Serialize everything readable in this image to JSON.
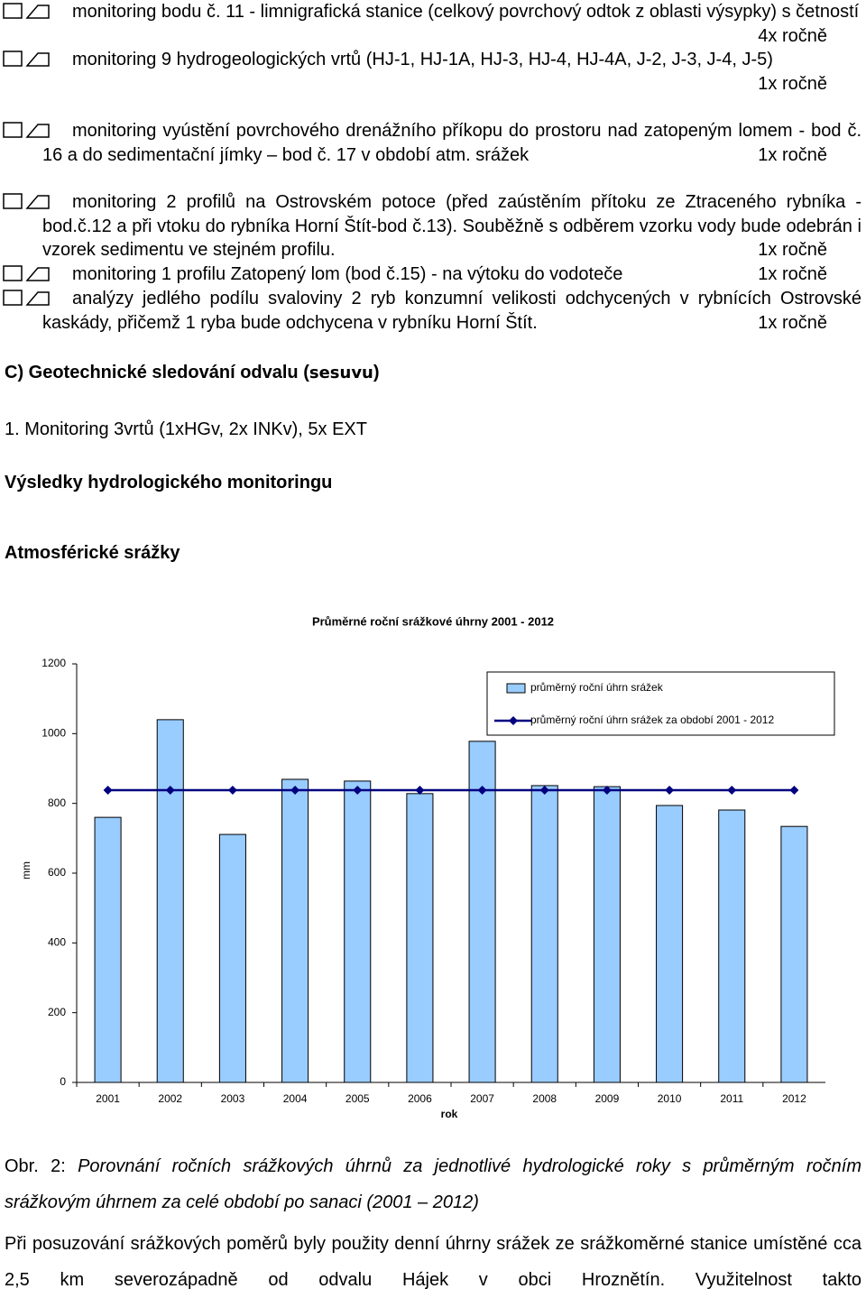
{
  "items": [
    {
      "text": "monitoring bodu č. 11 - limnigrafická stanice (celkový povrchový odtok z oblasti výsypky) s četností",
      "frequency": "4x ročně"
    },
    {
      "text": "monitoring 9 hydrogeologických vrtů (HJ-1, HJ-1A, HJ-3, HJ-4, HJ-4A, J-2, J-3, J-4, J-5)",
      "frequency": "1x ročně"
    },
    {
      "text": "monitoring vyústění povrchového drenážního příkopu do prostoru nad zatopeným lomem - bod č. 16 a do sedimentační jímky – bod č. 17 v období atm. srážek",
      "frequency": "1x ročně"
    },
    {
      "text": "monitoring 2 profilů na Ostrovském potoce (před zaústěním přítoku ze Ztraceného rybníka - bod.č.12 a při vtoku do rybníka Horní Štít-bod č.13). Souběžně s odběrem vzorku vody bude odebrán i vzorek sedimentu ve stejném profilu.",
      "frequency": "1x ročně"
    },
    {
      "text": "monitoring 1 profilu Zatopený lom (bod č.15) - na výtoku do vodoteče",
      "frequency": "1x ročně"
    },
    {
      "text": "analýzy jedlého podílu svaloviny 2 ryb konzumní velikosti odchycených v rybnících Ostrovské kaskády, přičemž 1 ryba bude odchycena v rybníku Horní Štít.",
      "frequency": "1x ročně"
    }
  ],
  "section_c": {
    "title": "C) Geotechnické sledování odvalu (",
    "title_em": "sesuvu",
    "title_end": ")",
    "item": "1. Monitoring 3vrtů (1xHGv, 2x INKv), 5x EXT"
  },
  "results_heading": "Výsledky hydrologického monitoringu",
  "subheading": "Atmosférické srážky",
  "chart_data": {
    "type": "bar",
    "title": "Průměrné roční srážkové úhrny 2001 - 2012",
    "x_label": "rok",
    "y_label": "mm",
    "categories": [
      "2001",
      "2002",
      "2003",
      "2004",
      "2005",
      "2006",
      "2007",
      "2008",
      "2009",
      "2010",
      "2011",
      "2012"
    ],
    "series": [
      {
        "name": "průměrný roční úhrn srážek",
        "type": "bar",
        "color": "#99ccff",
        "values": [
          760,
          1040,
          711,
          869,
          864,
          828,
          978,
          851,
          848,
          794,
          781,
          734
        ]
      },
      {
        "name": "průměrný roční úhrn srážek za období 2001 - 2012",
        "type": "line",
        "color": "#000080",
        "values": [
          838,
          838,
          838,
          838,
          838,
          838,
          838,
          838,
          838,
          838,
          838,
          838
        ]
      }
    ],
    "ylim": [
      0,
      1200
    ],
    "yticks": [
      0,
      200,
      400,
      600,
      800,
      1000,
      1200
    ],
    "grid": false,
    "legend": "upper right"
  },
  "caption": {
    "label": "Obr. 2:",
    "text": "Porovnání ročních srážkových úhrnů za jednotlivé hydrologické roky s průměrným ročním srážkovým úhrnem za celé období po sanaci (2001 – 2012)"
  },
  "paragraph": "Při posuzování srážkových poměrů byly použity denní úhrny srážek ze srážkoměrné stanice umístěné cca 2,5 km severozápadně od odvalu Hájek v obci Hroznětín. Využitelnost takto"
}
